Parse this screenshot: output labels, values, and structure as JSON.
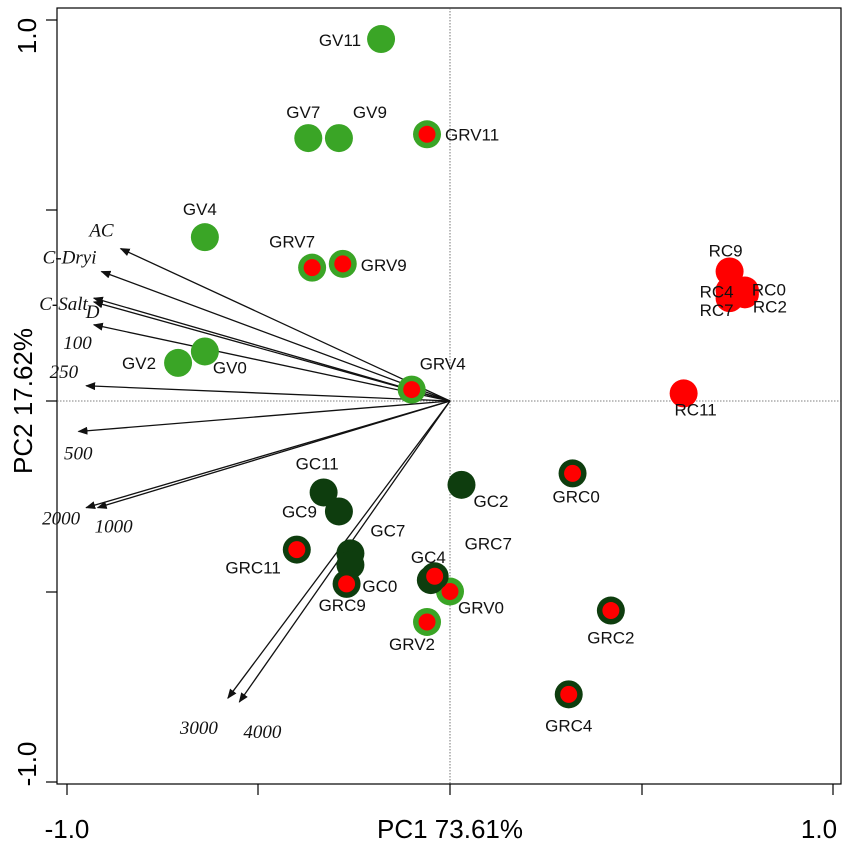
{
  "chart_data": {
    "type": "scatter",
    "title": "",
    "xlabel": "PC1 73.61%",
    "ylabel": "PC2 17.62%",
    "xlim": [
      -1.0,
      1.0
    ],
    "ylim": [
      -1.0,
      1.0
    ],
    "x_tick_labels": [
      "-1.0",
      "1.0"
    ],
    "y_tick_labels": [
      "1.0",
      "-1.0"
    ],
    "colors": {
      "light_green": "#3aa526",
      "dark_green": "#0e3d0e",
      "red": "#ff0000",
      "arrow": "#111111"
    },
    "series": [
      {
        "name": "GV",
        "style": "light_green",
        "points": [
          {
            "label": "GV11",
            "x": -0.18,
            "y": 0.95
          },
          {
            "label": "GV7",
            "x": -0.37,
            "y": 0.69
          },
          {
            "label": "GV9",
            "x": -0.29,
            "y": 0.69
          },
          {
            "label": "GV4",
            "x": -0.64,
            "y": 0.43
          },
          {
            "label": "GV2",
            "x": -0.71,
            "y": 0.1
          },
          {
            "label": "GV0",
            "x": -0.64,
            "y": 0.13
          }
        ]
      },
      {
        "name": "GRV",
        "style": "green_ring_red",
        "points": [
          {
            "label": "GRV11",
            "x": -0.06,
            "y": 0.7
          },
          {
            "label": "GRV7",
            "x": -0.36,
            "y": 0.35
          },
          {
            "label": "GRV9",
            "x": -0.28,
            "y": 0.36
          },
          {
            "label": "GRV4",
            "x": -0.1,
            "y": 0.03
          },
          {
            "label": "GRV0",
            "x": 0.0,
            "y": -0.5
          },
          {
            "label": "GRV2",
            "x": -0.06,
            "y": -0.58
          }
        ]
      },
      {
        "name": "RC",
        "style": "red",
        "points": [
          {
            "label": "RC9",
            "x": 0.73,
            "y": 0.34
          },
          {
            "label": "RC0",
            "x": 0.77,
            "y": 0.29
          },
          {
            "label": "RC4",
            "x": 0.73,
            "y": 0.29
          },
          {
            "label": "RC7",
            "x": 0.73,
            "y": 0.27
          },
          {
            "label": "RC2",
            "x": 0.77,
            "y": 0.28
          },
          {
            "label": "RC11",
            "x": 0.61,
            "y": 0.02
          }
        ]
      },
      {
        "name": "GC",
        "style": "dark_green",
        "points": [
          {
            "label": "GC11",
            "x": -0.33,
            "y": -0.24
          },
          {
            "label": "GC9",
            "x": -0.29,
            "y": -0.29
          },
          {
            "label": "GC7",
            "x": -0.26,
            "y": -0.4
          },
          {
            "label": "GC0",
            "x": -0.26,
            "y": -0.43
          },
          {
            "label": "GC4",
            "x": -0.05,
            "y": -0.47
          },
          {
            "label": "GC2",
            "x": 0.03,
            "y": -0.22
          }
        ]
      },
      {
        "name": "GRC",
        "style": "dark_ring_red",
        "points": [
          {
            "label": "GRC0",
            "x": 0.32,
            "y": -0.19
          },
          {
            "label": "GRC11",
            "x": -0.4,
            "y": -0.39
          },
          {
            "label": "GRC9",
            "x": -0.27,
            "y": -0.48
          },
          {
            "label": "GRC7",
            "x": -0.04,
            "y": -0.46
          },
          {
            "label": "GRC2",
            "x": 0.42,
            "y": -0.55
          },
          {
            "label": "GRC4",
            "x": 0.31,
            "y": -0.77
          }
        ]
      }
    ],
    "vectors": [
      {
        "label": "AC",
        "x": -0.86,
        "y": 0.4
      },
      {
        "label": "C-Dryi",
        "x": -0.91,
        "y": 0.34
      },
      {
        "label": "D",
        "x": -0.93,
        "y": 0.27
      },
      {
        "label": "C-Salt",
        "x": -0.93,
        "y": 0.26
      },
      {
        "label": "100",
        "x": -0.93,
        "y": 0.2
      },
      {
        "label": "250",
        "x": -0.95,
        "y": 0.04
      },
      {
        "label": "500",
        "x": -0.97,
        "y": -0.08
      },
      {
        "label": "2000",
        "x": -0.95,
        "y": -0.28
      },
      {
        "label": "1000",
        "x": -0.92,
        "y": -0.28
      },
      {
        "label": "3000",
        "x": -0.58,
        "y": -0.78
      },
      {
        "label": "4000",
        "x": -0.55,
        "y": -0.79
      }
    ]
  }
}
